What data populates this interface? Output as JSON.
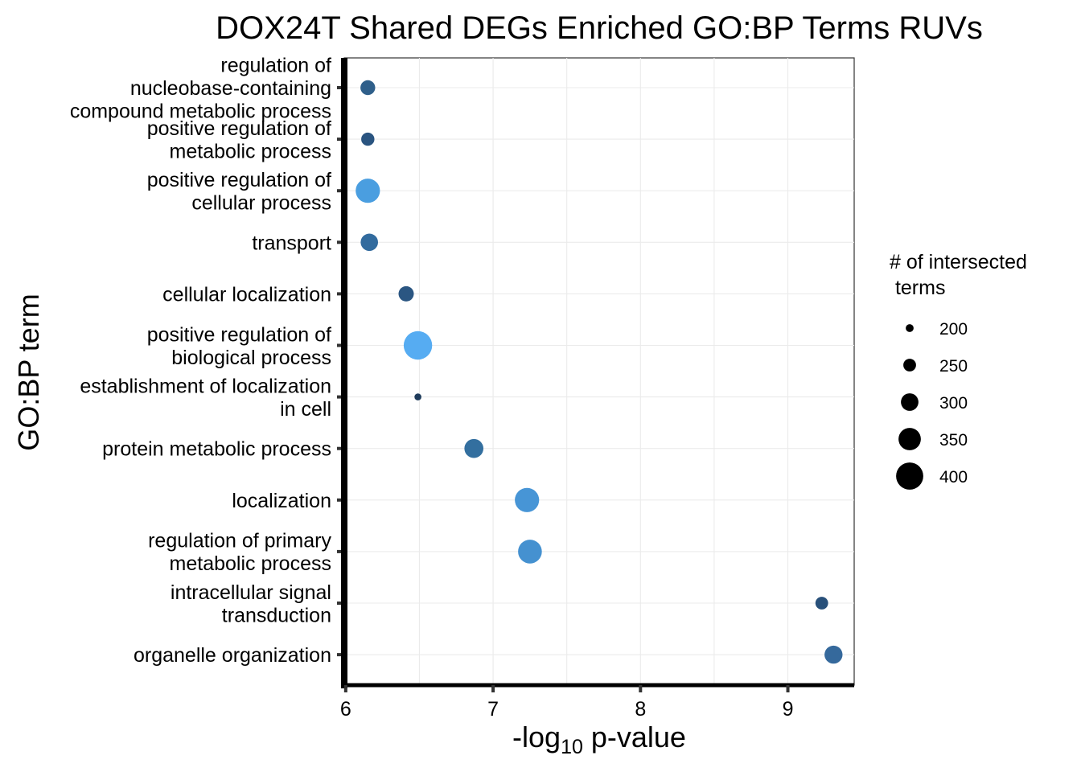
{
  "chart_data": {
    "type": "scatter",
    "title": "DOX24T Shared DEGs Enriched GO:BP Terms RUVs",
    "xlabel_prefix": "-log",
    "xlabel_subscript": "10",
    "xlabel_suffix": " p-value",
    "ylabel": "GO:BP term",
    "xlim": [
      5.99,
      9.45
    ],
    "xticks": [
      6,
      7,
      8,
      9
    ],
    "size_legend": {
      "title": [
        "# of intersected",
        " terms"
      ],
      "breaks": [
        200,
        250,
        300,
        350,
        400
      ],
      "size_range": [
        180,
        410
      ]
    },
    "points": [
      {
        "term": [
          "regulation of",
          "nucleobase-containing",
          "compound metabolic process"
        ],
        "x": 6.15,
        "size": 260,
        "color": "#2f5f8a"
      },
      {
        "term": [
          "positive regulation of",
          "metabolic process"
        ],
        "x": 6.15,
        "size": 245,
        "color": "#2a5480"
      },
      {
        "term": [
          "positive regulation of",
          "cellular process"
        ],
        "x": 6.15,
        "size": 350,
        "color": "#4a9ee0"
      },
      {
        "term": [
          "transport"
        ],
        "x": 6.16,
        "size": 285,
        "color": "#326b9e"
      },
      {
        "term": [
          "cellular localization"
        ],
        "x": 6.41,
        "size": 265,
        "color": "#2b5682"
      },
      {
        "term": [
          "positive regulation of",
          "biological process"
        ],
        "x": 6.49,
        "size": 390,
        "color": "#56acf2"
      },
      {
        "term": [
          "establishment of localization",
          "in cell"
        ],
        "x": 6.49,
        "size": 185,
        "color": "#1e3b5b"
      },
      {
        "term": [
          "protein metabolic process"
        ],
        "x": 6.87,
        "size": 300,
        "color": "#336f9f"
      },
      {
        "term": [
          "localization"
        ],
        "x": 7.23,
        "size": 350,
        "color": "#4795d6"
      },
      {
        "term": [
          "regulation of primary",
          "metabolic process"
        ],
        "x": 7.25,
        "size": 345,
        "color": "#4591d0"
      },
      {
        "term": [
          "intracellular signal",
          "transduction"
        ],
        "x": 9.23,
        "size": 240,
        "color": "#28507a"
      },
      {
        "term": [
          "organelle organization"
        ],
        "x": 9.31,
        "size": 290,
        "color": "#35699c"
      }
    ]
  }
}
